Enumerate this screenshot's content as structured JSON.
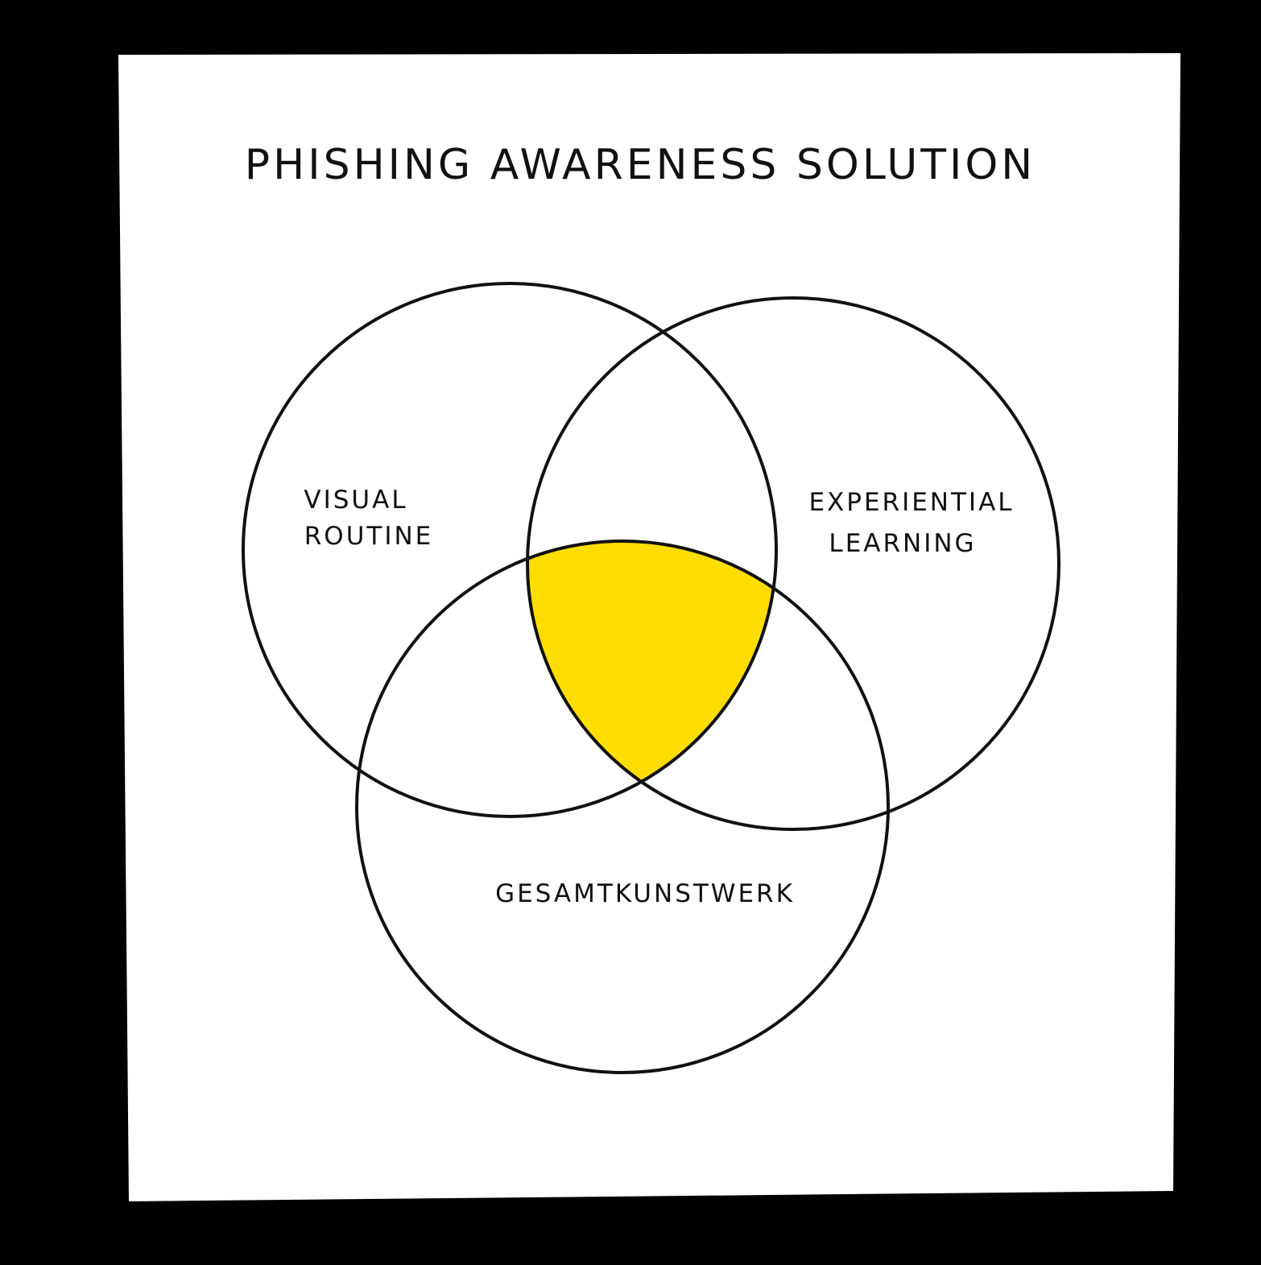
{
  "diagram": {
    "title": "PHISHING AWARENESS SOLUTION",
    "sets": [
      {
        "id": "visual",
        "lines": [
          "VISUAL",
          "ROUTINE"
        ]
      },
      {
        "id": "experiential",
        "lines": [
          "EXPERIENTIAL",
          "LEARNING"
        ]
      },
      {
        "id": "gesamt",
        "lines": [
          "GESAMTKUNSTWERK"
        ]
      }
    ],
    "highlight": "center-intersection"
  },
  "colors": {
    "background": "#000000",
    "paper": "#ffffff",
    "ink": "#111111",
    "highlight": "#ffdd00"
  }
}
